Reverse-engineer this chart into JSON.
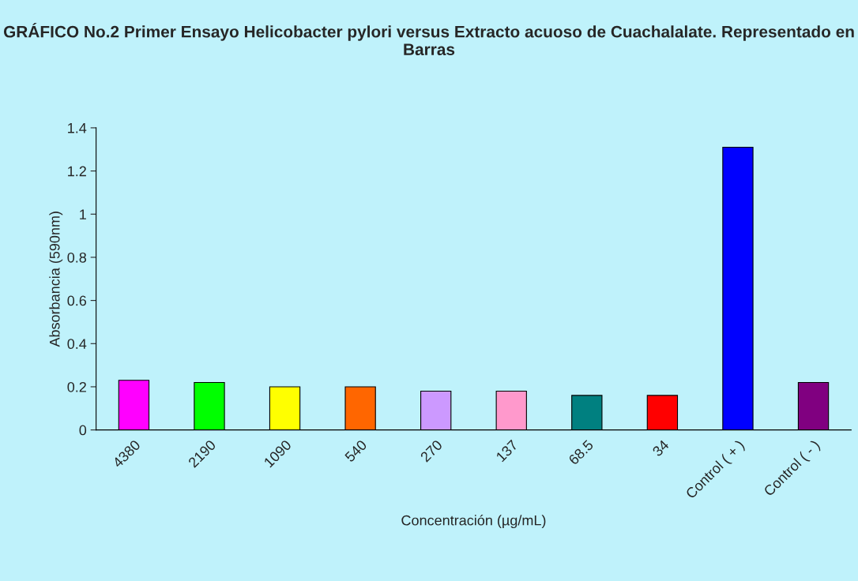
{
  "chart_data": {
    "type": "bar",
    "title": "GRÁFICO No.2 Primer Ensayo Helicobacter pylori versus Extracto acuoso de Cuachalalate. Representado en Barras",
    "xlabel": "Concentración (µg/mL)",
    "ylabel": "Absorbancia (590nm)",
    "categories": [
      "4380",
      "2190",
      "1090",
      "540",
      "270",
      "137",
      "68.5",
      "34",
      "Control ( + )",
      "Control ( - )"
    ],
    "values": [
      0.23,
      0.22,
      0.2,
      0.2,
      0.18,
      0.18,
      0.16,
      0.16,
      1.31,
      0.22
    ],
    "colors": [
      "#ff00ff",
      "#00ff00",
      "#ffff00",
      "#ff6600",
      "#cc99ff",
      "#ff99cc",
      "#008080",
      "#ff0000",
      "#0000ff",
      "#800080"
    ],
    "ylim": [
      0,
      1.4
    ],
    "yticks": [
      0,
      0.2,
      0.4,
      0.6,
      0.8,
      1,
      1.2,
      1.4
    ],
    "grid": false,
    "legend": false
  }
}
